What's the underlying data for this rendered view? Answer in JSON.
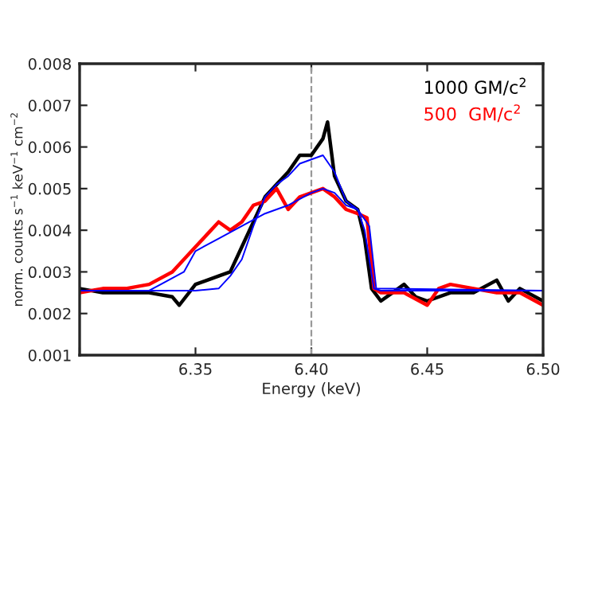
{
  "chart_data": {
    "type": "line",
    "xlabel": "Energy (keV)",
    "ylabel": "norm. counts s$^{−1}$ keV$^{−1}$ cm$^{−2}$",
    "xlim": [
      6.3,
      6.5
    ],
    "xticks": [
      {
        "value": 6.3,
        "label": null
      },
      6.35,
      {
        "value": 6.4,
        "label": "6.40"
      },
      6.45,
      {
        "value": 6.5,
        "label": "6.50"
      }
    ],
    "ylim": [
      0.001,
      0.008
    ],
    "yticks": [
      0.001,
      0.002,
      0.003,
      0.004,
      0.005,
      0.006,
      0.007,
      0.008
    ],
    "grid": false,
    "legend": "top right",
    "marker": "none",
    "line_style": "solid",
    "ref_lines": [
      {
        "axis": "x",
        "value": 6.4,
        "color": "#999999",
        "line_style": "dashed"
      }
    ],
    "series": [
      {
        "name": "1000 GM/c$^{2}$",
        "color": "#000000",
        "x": [
          6.3,
          6.31,
          6.32,
          6.33,
          6.34,
          6.343,
          6.35,
          6.36,
          6.365,
          6.37,
          6.375,
          6.38,
          6.385,
          6.39,
          6.395,
          6.4,
          6.405,
          6.407,
          6.41,
          6.415,
          6.42,
          6.423,
          6.426,
          6.43,
          6.435,
          6.44,
          6.445,
          6.45,
          6.46,
          6.47,
          6.48,
          6.485,
          6.49,
          6.5
        ],
        "values": [
          0.0026,
          0.0025,
          0.0025,
          0.0025,
          0.0024,
          0.0022,
          0.0027,
          0.0029,
          0.003,
          0.0036,
          0.0042,
          0.0048,
          0.0051,
          0.0054,
          0.0058,
          0.0058,
          0.0062,
          0.0066,
          0.0053,
          0.0047,
          0.0045,
          0.0038,
          0.0026,
          0.0023,
          0.0025,
          0.0027,
          0.0024,
          0.0023,
          0.0025,
          0.0025,
          0.0028,
          0.0023,
          0.0026,
          0.0023
        ]
      },
      {
        "name": "500  GM/c$^{2}$",
        "color": "#ff0000",
        "x": [
          6.3,
          6.31,
          6.32,
          6.33,
          6.34,
          6.345,
          6.35,
          6.355,
          6.36,
          6.365,
          6.37,
          6.375,
          6.38,
          6.385,
          6.39,
          6.395,
          6.4,
          6.405,
          6.41,
          6.415,
          6.42,
          6.424,
          6.427,
          6.43,
          6.44,
          6.45,
          6.455,
          6.46,
          6.47,
          6.48,
          6.49,
          6.5
        ],
        "values": [
          0.0025,
          0.0026,
          0.0026,
          0.0027,
          0.003,
          0.0033,
          0.0036,
          0.0039,
          0.0042,
          0.004,
          0.0042,
          0.0046,
          0.0047,
          0.005,
          0.0045,
          0.0048,
          0.0049,
          0.005,
          0.0048,
          0.0045,
          0.0044,
          0.0043,
          0.0026,
          0.0025,
          0.0025,
          0.0022,
          0.0026,
          0.0027,
          0.0026,
          0.0025,
          0.0025,
          0.0022
        ]
      },
      {
        "color": "#0000ff",
        "x": [
          6.3,
          6.35,
          6.36,
          6.365,
          6.37,
          6.375,
          6.38,
          6.385,
          6.39,
          6.395,
          6.4,
          6.405,
          6.41,
          6.415,
          6.42,
          6.423,
          6.427,
          6.43,
          6.5
        ],
        "values": [
          0.00255,
          0.00255,
          0.0026,
          0.0029,
          0.0033,
          0.0041,
          0.0048,
          0.0051,
          0.0053,
          0.0056,
          0.0057,
          0.0058,
          0.0054,
          0.0047,
          0.0045,
          0.004,
          0.0026,
          0.00255,
          0.00255
        ]
      },
      {
        "color": "#0000ff",
        "x": [
          6.3,
          6.33,
          6.335,
          6.345,
          6.35,
          6.36,
          6.37,
          6.38,
          6.39,
          6.4,
          6.405,
          6.41,
          6.415,
          6.42,
          6.425,
          6.428,
          6.5
        ],
        "values": [
          0.00255,
          0.00255,
          0.0027,
          0.003,
          0.0035,
          0.0038,
          0.0041,
          0.0044,
          0.0046,
          0.0049,
          0.005,
          0.0049,
          0.0046,
          0.0045,
          0.0041,
          0.0026,
          0.00255
        ]
      }
    ]
  }
}
